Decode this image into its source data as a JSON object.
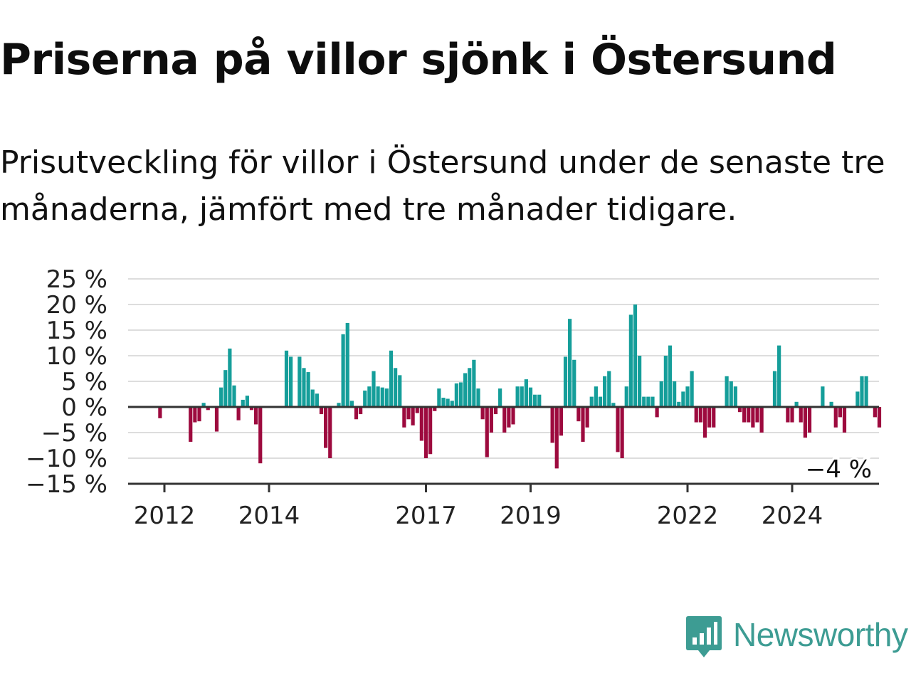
{
  "title": "Priserna på villor sjönk i Östersund",
  "subtitle": "Prisutveckling för villor i Östersund under de senaste tre månaderna, jämfört med tre månader tidigare.",
  "brand": {
    "name": "Newsworthy",
    "color": "#3d9c93",
    "icon": "newsworthy-logo-icon"
  },
  "colors": {
    "positive": "#159e9a",
    "negative": "#9d0a3e",
    "gridline": "#dddddd",
    "axis": "#333333"
  },
  "chart_data": {
    "type": "bar",
    "title": "Priserna på villor sjönk i Östersund",
    "subtitle": "Prisutveckling för villor i Östersund under de senaste tre månaderna, jämfört med tre månader tidigare.",
    "xlabel": "",
    "ylabel": "",
    "ylim": [
      -15,
      25
    ],
    "y_ticks": [
      25,
      20,
      15,
      10,
      5,
      0,
      -5,
      -10,
      -15
    ],
    "y_tick_labels": [
      "25 %",
      "20 %",
      "15 %",
      "10 %",
      "5 %",
      "0 %",
      "−5 %",
      "−10 %",
      "−15 %"
    ],
    "x_ticks": [
      {
        "label": "2012",
        "date": "2012-01"
      },
      {
        "label": "2014",
        "date": "2014-01"
      },
      {
        "label": "2017",
        "date": "2017-01"
      },
      {
        "label": "2019",
        "date": "2019-01"
      },
      {
        "label": "2022",
        "date": "2022-01"
      },
      {
        "label": "2024",
        "date": "2024-01"
      }
    ],
    "grid": true,
    "series": [
      {
        "start_date": "2011-07",
        "frequency": "monthly",
        "values": [
          0,
          0,
          0,
          0,
          0,
          -2.2,
          0,
          0,
          0,
          0,
          0,
          0,
          -6.8,
          -3.0,
          -2.8,
          0.8,
          -0.6,
          0,
          -4.8,
          3.8,
          7.2,
          11.4,
          4.2,
          -2.6,
          1.4,
          2.2,
          -0.6,
          -3.4,
          -11.0,
          0,
          0,
          0,
          0,
          0,
          11.0,
          9.8,
          0,
          9.8,
          7.6,
          6.8,
          3.4,
          2.6,
          -1.4,
          -8.0,
          -10.0,
          0,
          0.8,
          14.2,
          16.4,
          1.2,
          -2.4,
          -1.4,
          3.2,
          4.0,
          7.0,
          4.0,
          3.8,
          3.6,
          11.0,
          7.6,
          6.2,
          -4.0,
          -2.4,
          -3.6,
          -1.2,
          -6.6,
          -10.0,
          -9.2,
          -0.8,
          3.6,
          1.8,
          1.6,
          1.2,
          4.6,
          4.8,
          6.6,
          7.6,
          9.2,
          3.6,
          -2.4,
          -9.8,
          -5.0,
          -1.4,
          3.6,
          -5.0,
          -4.0,
          -3.4,
          4.0,
          4.0,
          5.4,
          3.8,
          2.4,
          2.4,
          0,
          0,
          -7.0,
          -12.0,
          -5.6,
          9.8,
          17.2,
          9.2,
          -2.8,
          -6.8,
          -4.0,
          2.0,
          4.0,
          2.0,
          6.0,
          7.0,
          0.8,
          -8.8,
          -10.0,
          4.0,
          18.0,
          20.0,
          10.0,
          2.0,
          2.0,
          2.0,
          -2.0,
          5.0,
          10.0,
          12.0,
          5.0,
          1.0,
          3.0,
          4.0,
          7.0,
          -3.0,
          -3.0,
          -6.0,
          -4.0,
          -4.0,
          0,
          0,
          6.0,
          5.0,
          4.0,
          -1.0,
          -3.0,
          -3.0,
          -4.0,
          -3.0,
          -5.0,
          0,
          0,
          7.0,
          12.0,
          0,
          -3.0,
          -3.0,
          1.0,
          -3.0,
          -6.0,
          -5.0,
          0,
          0,
          4.0,
          0,
          1.0,
          -4.0,
          -2.0,
          -5.0,
          0,
          0,
          3.0,
          6.0,
          6.0,
          0,
          -2.0,
          -4.0
        ]
      }
    ],
    "annotations": [
      {
        "text": "−4 %",
        "date": "2024-12",
        "value": -4
      }
    ]
  }
}
